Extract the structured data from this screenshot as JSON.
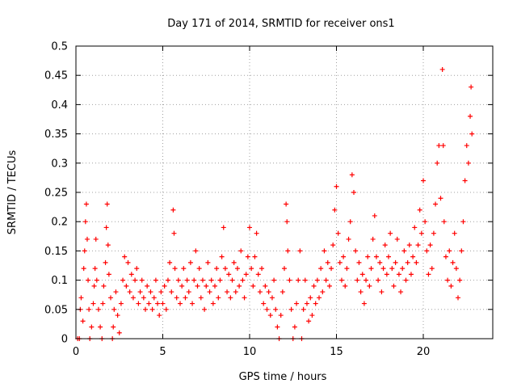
{
  "chart_data": {
    "type": "scatter",
    "title": "Day 171 of 2014, SRMTID for receiver ons1",
    "xlabel": "GPS time / hours",
    "ylabel": "SRMTID / TECUs",
    "xlim": [
      0,
      24
    ],
    "ylim": [
      0,
      0.5
    ],
    "xticks": [
      0,
      5,
      10,
      15,
      20
    ],
    "yticks": [
      0,
      0.05,
      0.1,
      0.15,
      0.2,
      0.25,
      0.3,
      0.35,
      0.4,
      0.45,
      0.5
    ],
    "xtick_labels": [
      "0",
      "5",
      "10",
      "15",
      "20"
    ],
    "ytick_labels": [
      "0",
      "0.05",
      "0.1",
      "0.15",
      "0.2",
      "0.25",
      "0.3",
      "0.35",
      "0.4",
      "0.45",
      "0.5"
    ],
    "grid": true,
    "marker": "+",
    "series": [
      {
        "name": "SRMTID",
        "color": "#ff0000",
        "points": [
          [
            0.1,
            0.0
          ],
          [
            0.2,
            0.0
          ],
          [
            0.25,
            0.05
          ],
          [
            0.3,
            0.07
          ],
          [
            0.4,
            0.03
          ],
          [
            0.45,
            0.12
          ],
          [
            0.5,
            0.15
          ],
          [
            0.55,
            0.2
          ],
          [
            0.6,
            0.23
          ],
          [
            0.65,
            0.17
          ],
          [
            0.7,
            0.1
          ],
          [
            0.75,
            0.05
          ],
          [
            0.8,
            0.0
          ],
          [
            0.9,
            0.02
          ],
          [
            1.0,
            0.06
          ],
          [
            1.05,
            0.09
          ],
          [
            1.1,
            0.12
          ],
          [
            1.15,
            0.17
          ],
          [
            1.2,
            0.1
          ],
          [
            1.3,
            0.05
          ],
          [
            1.4,
            0.02
          ],
          [
            1.5,
            0.0
          ],
          [
            1.55,
            0.06
          ],
          [
            1.6,
            0.09
          ],
          [
            1.7,
            0.13
          ],
          [
            1.75,
            0.19
          ],
          [
            1.8,
            0.23
          ],
          [
            1.85,
            0.16
          ],
          [
            1.9,
            0.11
          ],
          [
            2.0,
            0.07
          ],
          [
            2.1,
            0.0
          ],
          [
            2.15,
            0.02
          ],
          [
            2.2,
            0.05
          ],
          [
            2.3,
            0.08
          ],
          [
            2.4,
            0.04
          ],
          [
            2.5,
            0.01
          ],
          [
            2.6,
            0.06
          ],
          [
            2.7,
            0.1
          ],
          [
            2.8,
            0.14
          ],
          [
            2.9,
            0.09
          ],
          [
            3.0,
            0.13
          ],
          [
            3.1,
            0.08
          ],
          [
            3.2,
            0.11
          ],
          [
            3.3,
            0.07
          ],
          [
            3.4,
            0.1
          ],
          [
            3.5,
            0.12
          ],
          [
            3.6,
            0.06
          ],
          [
            3.7,
            0.08
          ],
          [
            3.8,
            0.1
          ],
          [
            3.9,
            0.07
          ],
          [
            4.0,
            0.05
          ],
          [
            4.1,
            0.09
          ],
          [
            4.2,
            0.06
          ],
          [
            4.3,
            0.08
          ],
          [
            4.4,
            0.05
          ],
          [
            4.5,
            0.07
          ],
          [
            4.6,
            0.1
          ],
          [
            4.7,
            0.06
          ],
          [
            4.8,
            0.04
          ],
          [
            4.9,
            0.08
          ],
          [
            5.0,
            0.06
          ],
          [
            5.1,
            0.09
          ],
          [
            5.2,
            0.05
          ],
          [
            5.3,
            0.1
          ],
          [
            5.4,
            0.13
          ],
          [
            5.5,
            0.08
          ],
          [
            5.6,
            0.22
          ],
          [
            5.65,
            0.18
          ],
          [
            5.7,
            0.12
          ],
          [
            5.8,
            0.07
          ],
          [
            5.9,
            0.1
          ],
          [
            6.0,
            0.06
          ],
          [
            6.1,
            0.09
          ],
          [
            6.2,
            0.12
          ],
          [
            6.3,
            0.07
          ],
          [
            6.4,
            0.1
          ],
          [
            6.5,
            0.08
          ],
          [
            6.6,
            0.13
          ],
          [
            6.7,
            0.06
          ],
          [
            6.8,
            0.1
          ],
          [
            6.9,
            0.15
          ],
          [
            7.0,
            0.09
          ],
          [
            7.1,
            0.12
          ],
          [
            7.2,
            0.07
          ],
          [
            7.3,
            0.1
          ],
          [
            7.4,
            0.05
          ],
          [
            7.5,
            0.09
          ],
          [
            7.6,
            0.13
          ],
          [
            7.7,
            0.08
          ],
          [
            7.8,
            0.1
          ],
          [
            7.9,
            0.06
          ],
          [
            8.0,
            0.09
          ],
          [
            8.1,
            0.12
          ],
          [
            8.2,
            0.07
          ],
          [
            8.3,
            0.1
          ],
          [
            8.4,
            0.14
          ],
          [
            8.5,
            0.19
          ],
          [
            8.6,
            0.12
          ],
          [
            8.7,
            0.08
          ],
          [
            8.8,
            0.11
          ],
          [
            8.9,
            0.07
          ],
          [
            9.0,
            0.1
          ],
          [
            9.1,
            0.13
          ],
          [
            9.2,
            0.08
          ],
          [
            9.3,
            0.12
          ],
          [
            9.4,
            0.09
          ],
          [
            9.5,
            0.15
          ],
          [
            9.6,
            0.1
          ],
          [
            9.7,
            0.07
          ],
          [
            9.8,
            0.11
          ],
          [
            9.9,
            0.14
          ],
          [
            10.0,
            0.19
          ],
          [
            10.1,
            0.12
          ],
          [
            10.2,
            0.09
          ],
          [
            10.3,
            0.14
          ],
          [
            10.4,
            0.18
          ],
          [
            10.5,
            0.11
          ],
          [
            10.6,
            0.08
          ],
          [
            10.7,
            0.12
          ],
          [
            10.8,
            0.06
          ],
          [
            10.9,
            0.09
          ],
          [
            11.0,
            0.05
          ],
          [
            11.1,
            0.08
          ],
          [
            11.2,
            0.04
          ],
          [
            11.3,
            0.07
          ],
          [
            11.4,
            0.1
          ],
          [
            11.5,
            0.05
          ],
          [
            11.6,
            0.02
          ],
          [
            11.7,
            0.0
          ],
          [
            11.8,
            0.04
          ],
          [
            11.9,
            0.08
          ],
          [
            12.0,
            0.12
          ],
          [
            12.1,
            0.23
          ],
          [
            12.15,
            0.2
          ],
          [
            12.2,
            0.15
          ],
          [
            12.3,
            0.1
          ],
          [
            12.4,
            0.05
          ],
          [
            12.5,
            0.0
          ],
          [
            12.6,
            0.02
          ],
          [
            12.7,
            0.06
          ],
          [
            12.8,
            0.1
          ],
          [
            12.9,
            0.15
          ],
          [
            13.0,
            0.0
          ],
          [
            13.1,
            0.05
          ],
          [
            13.2,
            0.1
          ],
          [
            13.3,
            0.06
          ],
          [
            13.4,
            0.03
          ],
          [
            13.5,
            0.07
          ],
          [
            13.6,
            0.04
          ],
          [
            13.7,
            0.09
          ],
          [
            13.8,
            0.06
          ],
          [
            13.9,
            0.1
          ],
          [
            14.0,
            0.07
          ],
          [
            14.1,
            0.12
          ],
          [
            14.2,
            0.08
          ],
          [
            14.3,
            0.15
          ],
          [
            14.4,
            0.1
          ],
          [
            14.5,
            0.13
          ],
          [
            14.6,
            0.09
          ],
          [
            14.7,
            0.12
          ],
          [
            14.8,
            0.16
          ],
          [
            14.9,
            0.22
          ],
          [
            15.0,
            0.26
          ],
          [
            15.1,
            0.18
          ],
          [
            15.2,
            0.13
          ],
          [
            15.3,
            0.1
          ],
          [
            15.4,
            0.14
          ],
          [
            15.5,
            0.09
          ],
          [
            15.6,
            0.12
          ],
          [
            15.7,
            0.17
          ],
          [
            15.8,
            0.2
          ],
          [
            15.9,
            0.28
          ],
          [
            16.0,
            0.25
          ],
          [
            16.1,
            0.15
          ],
          [
            16.2,
            0.1
          ],
          [
            16.3,
            0.13
          ],
          [
            16.4,
            0.08
          ],
          [
            16.5,
            0.11
          ],
          [
            16.6,
            0.06
          ],
          [
            16.7,
            0.1
          ],
          [
            16.8,
            0.14
          ],
          [
            16.9,
            0.09
          ],
          [
            17.0,
            0.12
          ],
          [
            17.1,
            0.17
          ],
          [
            17.2,
            0.21
          ],
          [
            17.3,
            0.14
          ],
          [
            17.4,
            0.1
          ],
          [
            17.5,
            0.13
          ],
          [
            17.6,
            0.08
          ],
          [
            17.7,
            0.12
          ],
          [
            17.8,
            0.16
          ],
          [
            17.9,
            0.11
          ],
          [
            18.0,
            0.14
          ],
          [
            18.1,
            0.18
          ],
          [
            18.2,
            0.12
          ],
          [
            18.3,
            0.09
          ],
          [
            18.4,
            0.13
          ],
          [
            18.5,
            0.17
          ],
          [
            18.6,
            0.11
          ],
          [
            18.7,
            0.08
          ],
          [
            18.8,
            0.12
          ],
          [
            18.9,
            0.15
          ],
          [
            19.0,
            0.1
          ],
          [
            19.1,
            0.13
          ],
          [
            19.2,
            0.16
          ],
          [
            19.3,
            0.11
          ],
          [
            19.4,
            0.14
          ],
          [
            19.5,
            0.19
          ],
          [
            19.6,
            0.13
          ],
          [
            19.7,
            0.16
          ],
          [
            19.8,
            0.22
          ],
          [
            19.9,
            0.18
          ],
          [
            20.0,
            0.27
          ],
          [
            20.1,
            0.2
          ],
          [
            20.2,
            0.15
          ],
          [
            20.3,
            0.11
          ],
          [
            20.4,
            0.16
          ],
          [
            20.5,
            0.12
          ],
          [
            20.6,
            0.18
          ],
          [
            20.7,
            0.23
          ],
          [
            20.8,
            0.3
          ],
          [
            20.9,
            0.33
          ],
          [
            21.0,
            0.24
          ],
          [
            21.1,
            0.46
          ],
          [
            21.15,
            0.33
          ],
          [
            21.2,
            0.2
          ],
          [
            21.3,
            0.14
          ],
          [
            21.4,
            0.1
          ],
          [
            21.5,
            0.15
          ],
          [
            21.6,
            0.09
          ],
          [
            21.7,
            0.13
          ],
          [
            21.8,
            0.18
          ],
          [
            21.9,
            0.12
          ],
          [
            22.0,
            0.07
          ],
          [
            22.1,
            0.1
          ],
          [
            22.2,
            0.15
          ],
          [
            22.3,
            0.2
          ],
          [
            22.4,
            0.27
          ],
          [
            22.5,
            0.33
          ],
          [
            22.6,
            0.3
          ],
          [
            22.7,
            0.38
          ],
          [
            22.75,
            0.43
          ],
          [
            22.8,
            0.35
          ]
        ]
      }
    ]
  }
}
